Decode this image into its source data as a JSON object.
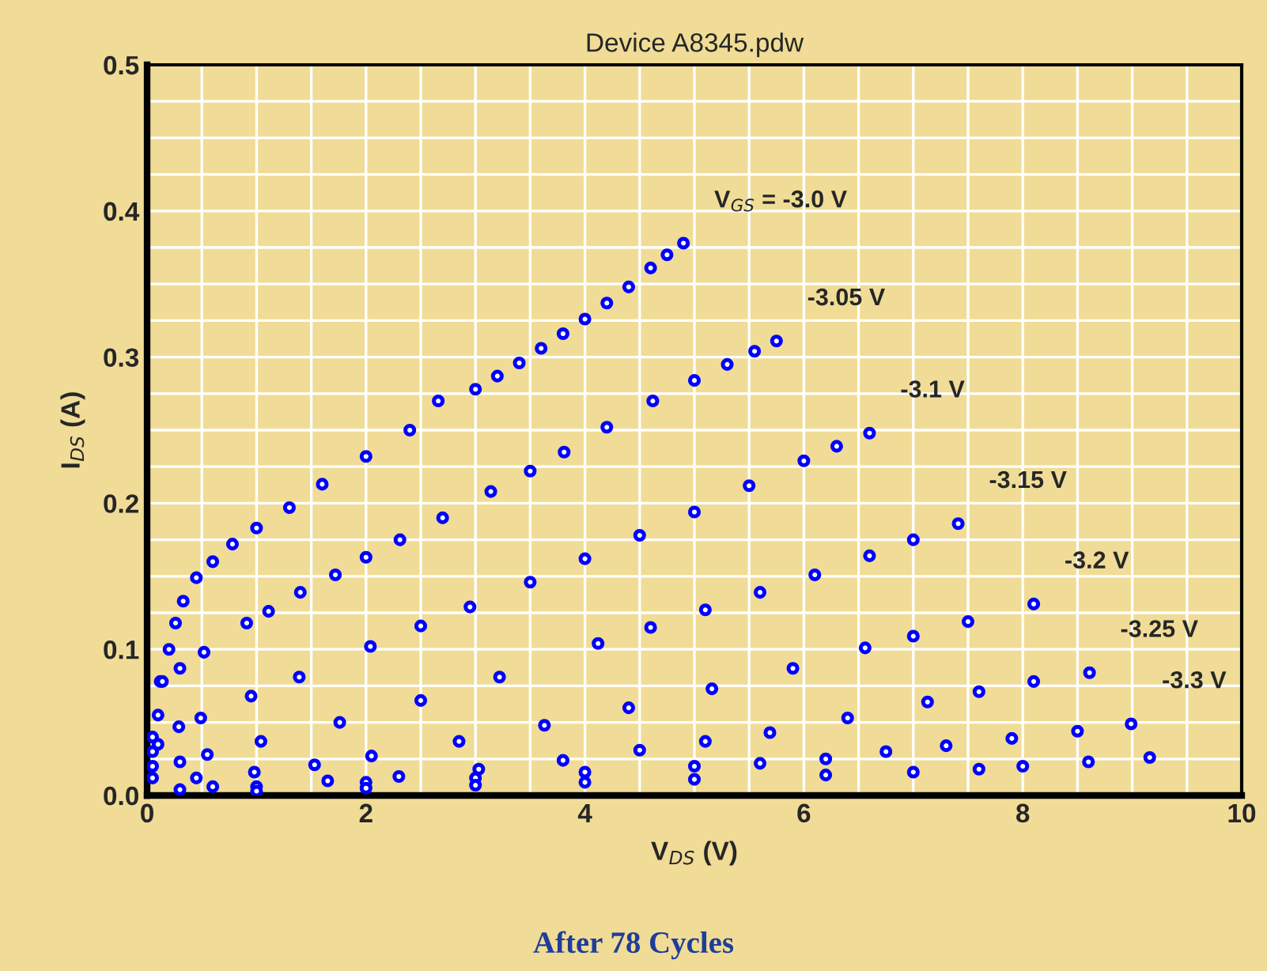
{
  "chart_data": {
    "type": "scatter",
    "title": "Device A8345.pdw",
    "xlabel": "V$_{DS}$ (V)",
    "ylabel": "I$_{DS}$ (A)",
    "annotations": [
      "After 78 Cycles"
    ],
    "xlim": [
      0,
      10
    ],
    "xticks": [
      0,
      2,
      4,
      6,
      8,
      10
    ],
    "ylim": [
      0,
      0.5
    ],
    "yticks": [
      {
        "value": 0,
        "label": "0.0"
      },
      0.1,
      0.2,
      0.3,
      0.4,
      0.5
    ],
    "grid": true,
    "marker": "circle",
    "legend": false,
    "series": [
      {
        "name": "V$_{GS}$ = -3.0 V",
        "color": "#0000ff",
        "x": [
          0.05,
          0.12,
          0.2,
          0.26,
          0.33,
          0.45,
          0.6,
          0.78,
          1.0,
          1.3,
          1.6,
          2.0,
          2.4,
          2.66,
          3.0,
          3.2,
          3.4,
          3.6,
          3.8,
          4.0,
          4.2,
          4.4,
          4.6,
          4.75,
          4.9
        ],
        "values": [
          0.04,
          0.078,
          0.1,
          0.118,
          0.133,
          0.149,
          0.16,
          0.172,
          0.183,
          0.197,
          0.213,
          0.232,
          0.25,
          0.27,
          0.278,
          0.287,
          0.296,
          0.306,
          0.316,
          0.326,
          0.337,
          0.348,
          0.361,
          0.37,
          0.378
        ]
      },
      {
        "name": "-3.05 V",
        "color": "#0000ff",
        "x": [
          0.05,
          0.1,
          0.14,
          0.3,
          0.52,
          0.91,
          1.11,
          1.4,
          1.72,
          2.0,
          2.31,
          2.7,
          3.14,
          3.5,
          3.81,
          4.2,
          4.62,
          5.0,
          5.3,
          5.55,
          5.75
        ],
        "values": [
          0.03,
          0.055,
          0.078,
          0.087,
          0.098,
          0.118,
          0.126,
          0.139,
          0.151,
          0.163,
          0.175,
          0.19,
          0.208,
          0.222,
          0.235,
          0.252,
          0.27,
          0.284,
          0.295,
          0.304,
          0.311
        ]
      },
      {
        "name": "-3.1 V",
        "color": "#0000ff",
        "x": [
          0.05,
          0.1,
          0.29,
          0.49,
          0.95,
          1.39,
          2.04,
          2.5,
          2.95,
          3.5,
          4.0,
          4.5,
          5.0,
          5.5,
          6.0,
          6.3,
          6.6
        ],
        "values": [
          0.02,
          0.035,
          0.047,
          0.053,
          0.068,
          0.081,
          0.102,
          0.116,
          0.129,
          0.146,
          0.162,
          0.178,
          0.194,
          0.212,
          0.229,
          0.239,
          0.248
        ]
      },
      {
        "name": "-3.15 V",
        "color": "#0000ff",
        "x": [
          0.05,
          0.3,
          0.55,
          1.04,
          1.76,
          2.5,
          3.22,
          4.12,
          4.6,
          5.1,
          5.6,
          6.1,
          6.6,
          7.0,
          7.41
        ],
        "values": [
          0.012,
          0.023,
          0.028,
          0.037,
          0.05,
          0.065,
          0.081,
          0.104,
          0.115,
          0.127,
          0.139,
          0.151,
          0.164,
          0.175,
          0.186
        ]
      },
      {
        "name": "-3.2 V",
        "color": "#0000ff",
        "x": [
          0.45,
          0.98,
          1.53,
          2.05,
          2.85,
          3.63,
          4.4,
          5.16,
          5.9,
          6.56,
          7.0,
          7.5,
          8.1
        ],
        "values": [
          0.012,
          0.016,
          0.021,
          0.027,
          0.037,
          0.048,
          0.06,
          0.073,
          0.087,
          0.101,
          0.109,
          0.119,
          0.131
        ]
      },
      {
        "name": "-3.25 V",
        "color": "#0000ff",
        "x": [
          0.6,
          1.65,
          2.3,
          3.03,
          3.8,
          4.5,
          5.1,
          5.69,
          6.4,
          7.13,
          7.6,
          8.1,
          8.61
        ],
        "values": [
          0.006,
          0.01,
          0.013,
          0.018,
          0.024,
          0.031,
          0.037,
          0.043,
          0.053,
          0.064,
          0.071,
          0.078,
          0.084
        ]
      },
      {
        "name": "-3.3 V",
        "color": "#0000ff",
        "x": [
          0.3,
          1.0,
          2.0,
          3.0,
          4.0,
          5.0,
          5.6,
          6.2,
          6.75,
          7.3,
          7.9,
          8.5,
          8.99
        ],
        "values": [
          0.004,
          0.006,
          0.009,
          0.012,
          0.016,
          0.02,
          0.022,
          0.025,
          0.03,
          0.034,
          0.039,
          0.044,
          0.049
        ]
      },
      {
        "color": "#0000ff",
        "x": [
          1.0,
          2.0,
          3.0,
          4.0,
          5.0,
          6.2,
          7.0,
          7.6,
          8.0,
          8.6,
          9.16
        ],
        "values": [
          0.003,
          0.005,
          0.007,
          0.009,
          0.011,
          0.014,
          0.016,
          0.018,
          0.02,
          0.023,
          0.026
        ]
      }
    ]
  }
}
